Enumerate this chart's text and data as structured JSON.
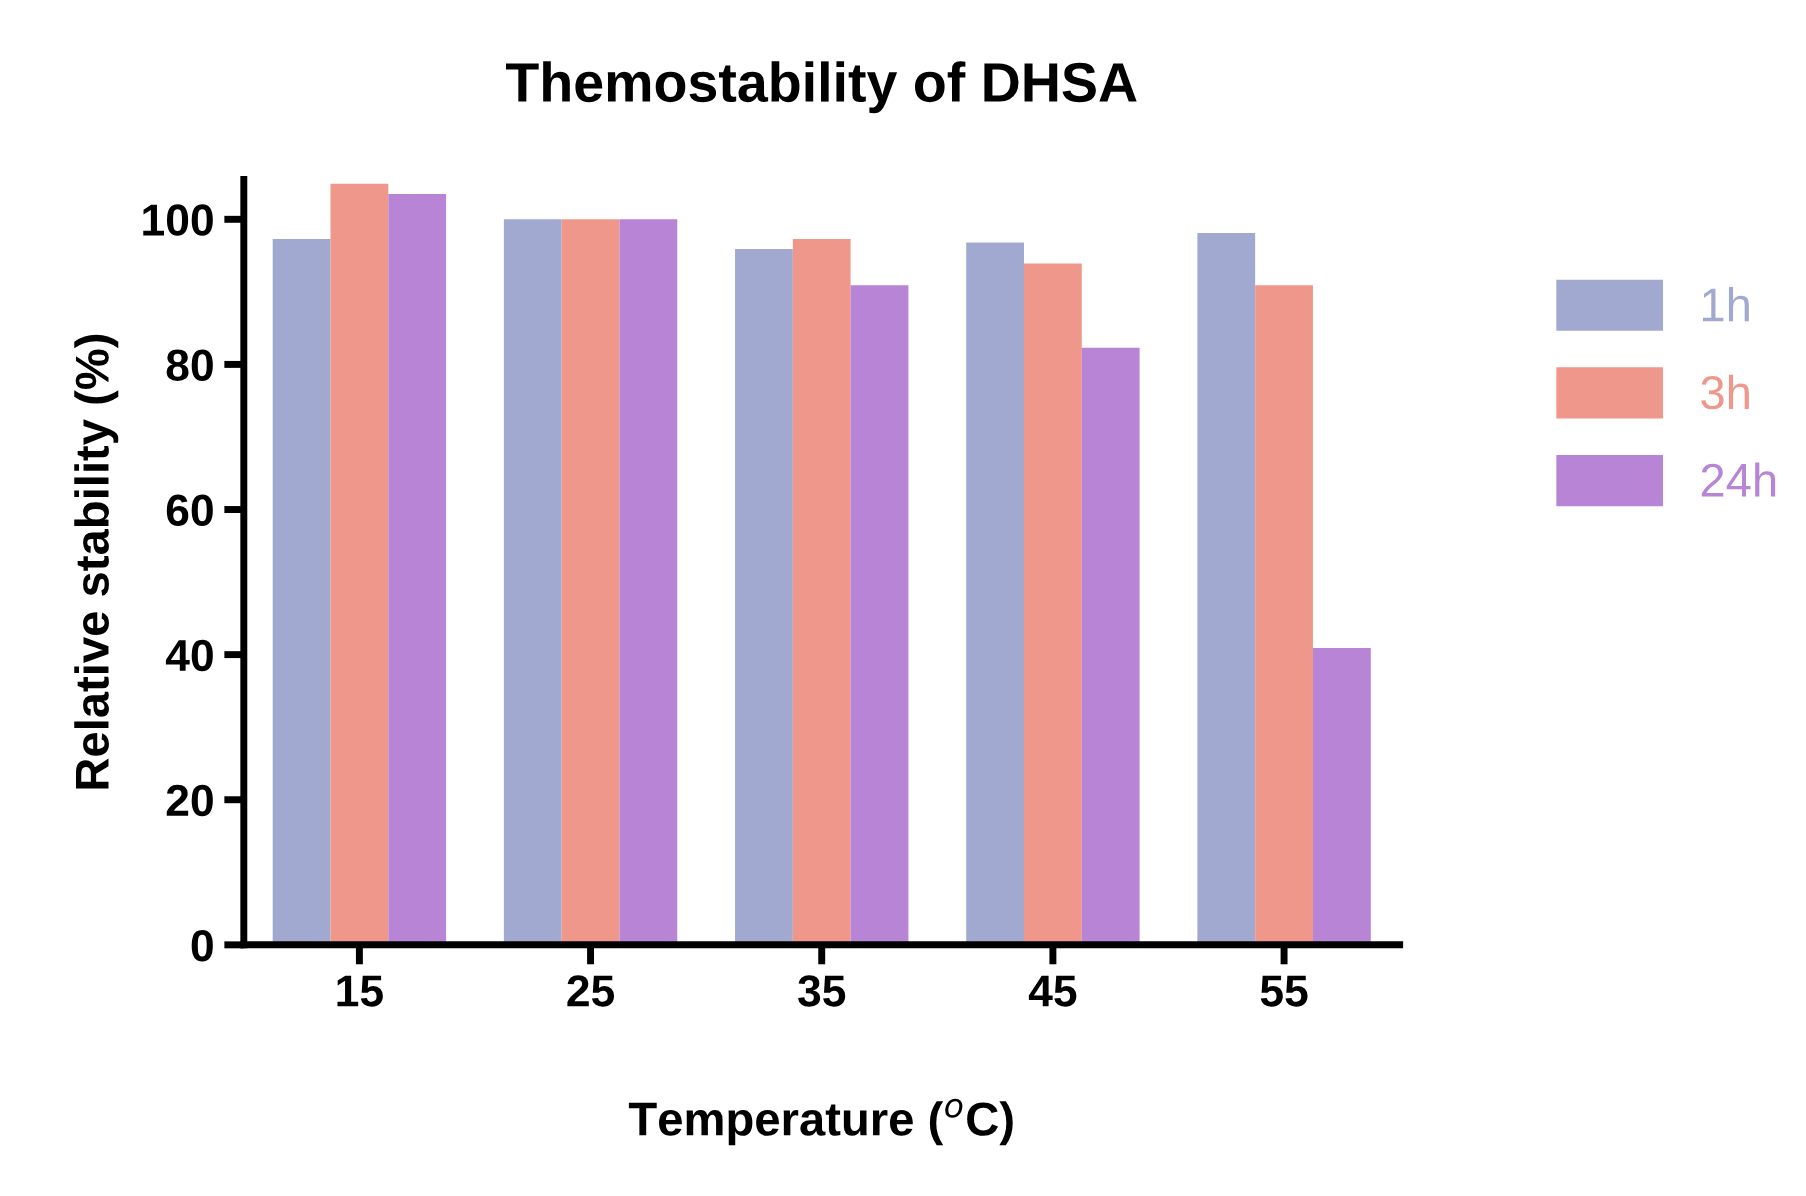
{
  "chart_data": {
    "type": "bar",
    "title": "Themostability of DHSA",
    "xlabel": "Temperature ($^{o}$C)",
    "ylabel": "Relative stability (%)",
    "categories": [
      "15",
      "25",
      "35",
      "45",
      "55"
    ],
    "series": [
      {
        "name": "1h",
        "color": "#a2a9d0",
        "values": [
          97.3,
          100,
          95.9,
          96.8,
          98.1
        ]
      },
      {
        "name": "3h",
        "color": "#ef978a",
        "values": [
          104.9,
          100,
          97.3,
          93.9,
          90.9
        ]
      },
      {
        "name": "24h",
        "color": "#b784d6",
        "values": [
          103.5,
          100,
          90.9,
          82.3,
          40.9
        ]
      }
    ],
    "ylim": [
      0,
      105.5
    ],
    "yticks": [
      0,
      20,
      40,
      60,
      80,
      100
    ],
    "grid": false,
    "legend": "right"
  }
}
